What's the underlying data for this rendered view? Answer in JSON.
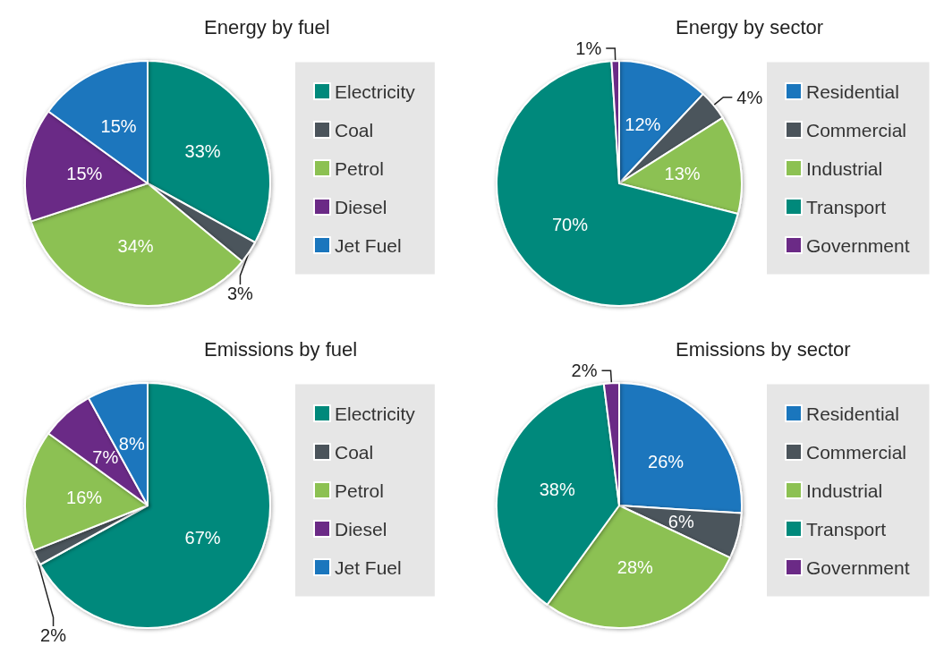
{
  "chart_data": [
    {
      "type": "pie",
      "title": "Energy by fuel",
      "categories": [
        "Electricity",
        "Coal",
        "Petrol",
        "Diesel",
        "Jet Fuel"
      ],
      "values": [
        33,
        3,
        34,
        15,
        15
      ],
      "value_labels": [
        "33%",
        "3%",
        "34%",
        "15%",
        "15%"
      ],
      "colors": [
        "#00897b",
        "#4b545b",
        "#8cc152",
        "#6b2a86",
        "#1a76bd"
      ],
      "legend": "right"
    },
    {
      "type": "pie",
      "title": "Energy by sector",
      "categories": [
        "Residential",
        "Commercial",
        "Industrial",
        "Transport",
        "Government"
      ],
      "values": [
        12,
        4,
        13,
        70,
        1
      ],
      "value_labels": [
        "12%",
        "4%",
        "13%",
        "70%",
        "1%"
      ],
      "colors": [
        "#1a76bd",
        "#4b545b",
        "#8cc152",
        "#00897b",
        "#6b2a86"
      ],
      "legend": "right"
    },
    {
      "type": "pie",
      "title": "Emissions by fuel",
      "categories": [
        "Electricity",
        "Coal",
        "Petrol",
        "Diesel",
        "Jet Fuel"
      ],
      "values": [
        67,
        2,
        16,
        7,
        8
      ],
      "value_labels": [
        "67%",
        "2%",
        "16%",
        "7%",
        "8%"
      ],
      "colors": [
        "#00897b",
        "#4b545b",
        "#8cc152",
        "#6b2a86",
        "#1a76bd"
      ],
      "legend": "right"
    },
    {
      "type": "pie",
      "title": "Emissions by sector",
      "categories": [
        "Residential",
        "Commercial",
        "Industrial",
        "Transport",
        "Government"
      ],
      "values": [
        26,
        6,
        28,
        38,
        2
      ],
      "value_labels": [
        "26%",
        "6%",
        "28%",
        "38%",
        "2%"
      ],
      "colors": [
        "#1a76bd",
        "#4b545b",
        "#8cc152",
        "#00897b",
        "#6b2a86"
      ],
      "legend": "right"
    }
  ]
}
